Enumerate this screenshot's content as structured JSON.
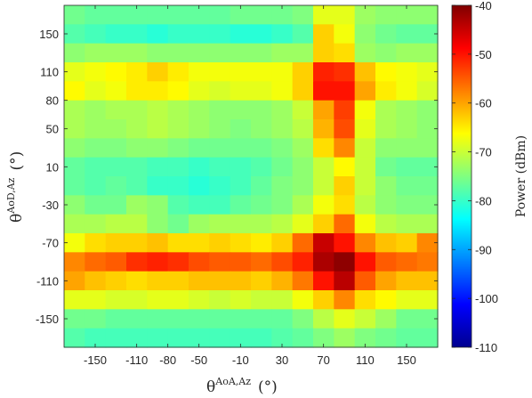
{
  "chart_data": {
    "type": "heatmap",
    "title": "",
    "x": [
      -170,
      -150,
      -130,
      -110,
      -90,
      -70,
      -50,
      -30,
      -10,
      10,
      30,
      50,
      70,
      90,
      110,
      130,
      150,
      170
    ],
    "y": [
      170,
      150,
      130,
      110,
      90,
      70,
      50,
      30,
      10,
      -10,
      -30,
      -50,
      -70,
      -90,
      -110,
      -130,
      -150,
      -170
    ],
    "xticks": [
      "-150",
      "-110",
      "-80",
      "-50",
      "-10",
      "30",
      "70",
      "110",
      "150"
    ],
    "yticks": [
      "150",
      "110",
      "80",
      "50",
      "10",
      "-30",
      "-70",
      "-110",
      "-150"
    ],
    "xlabel": {
      "base": "θ",
      "sup": "AoA,Az",
      "unit": "(°)"
    },
    "ylabel": {
      "base": "θ",
      "sup": "AoD,Az",
      "unit": "(°)"
    },
    "colorbar": {
      "label": "Power (dBm)",
      "min": -110,
      "max": -40,
      "ticks": [
        "-40",
        "-50",
        "-60",
        "-70",
        "-80",
        "-90",
        "-100",
        "-110"
      ],
      "colormap": "jet"
    },
    "values": [
      [
        -76,
        -77,
        -77,
        -77,
        -77,
        -77,
        -77,
        -77,
        -76,
        -76,
        -76,
        -75,
        -68,
        -68,
        -73,
        -74,
        -74,
        -74
      ],
      [
        -78,
        -79,
        -80,
        -80,
        -81,
        -80,
        -80,
        -80,
        -81,
        -81,
        -80,
        -78,
        -63,
        -67,
        -74,
        -76,
        -77,
        -77
      ],
      [
        -74,
        -73,
        -73,
        -73,
        -74,
        -74,
        -74,
        -74,
        -74,
        -74,
        -73,
        -73,
        -63,
        -64,
        -73,
        -74,
        -73,
        -73
      ],
      [
        -68,
        -67,
        -66,
        -65,
        -63,
        -65,
        -67,
        -67,
        -67,
        -67,
        -67,
        -63,
        -51,
        -52,
        -62,
        -66,
        -67,
        -68
      ],
      [
        -66,
        -68,
        -67,
        -65,
        -65,
        -66,
        -68,
        -69,
        -68,
        -68,
        -67,
        -63,
        -50,
        -50,
        -60,
        -65,
        -67,
        -69
      ],
      [
        -72,
        -73,
        -72,
        -72,
        -71,
        -72,
        -73,
        -74,
        -74,
        -74,
        -73,
        -70,
        -60,
        -53,
        -67,
        -72,
        -73,
        -74
      ],
      [
        -72,
        -73,
        -73,
        -72,
        -71,
        -72,
        -73,
        -74,
        -75,
        -74,
        -73,
        -71,
        -61,
        -54,
        -68,
        -72,
        -73,
        -74
      ],
      [
        -74,
        -75,
        -75,
        -74,
        -74,
        -75,
        -76,
        -76,
        -76,
        -76,
        -75,
        -73,
        -64,
        -58,
        -70,
        -74,
        -74,
        -74
      ],
      [
        -77,
        -78,
        -78,
        -78,
        -79,
        -79,
        -80,
        -79,
        -79,
        -78,
        -76,
        -74,
        -70,
        -66,
        -70,
        -76,
        -77,
        -77
      ],
      [
        -77,
        -78,
        -77,
        -78,
        -80,
        -80,
        -81,
        -80,
        -79,
        -77,
        -75,
        -74,
        -70,
        -63,
        -70,
        -74,
        -76,
        -76
      ],
      [
        -74,
        -76,
        -76,
        -73,
        -74,
        -78,
        -79,
        -79,
        -77,
        -76,
        -75,
        -72,
        -67,
        -64,
        -71,
        -74,
        -75,
        -75
      ],
      [
        -72,
        -72,
        -71,
        -71,
        -74,
        -76,
        -73,
        -72,
        -72,
        -72,
        -71,
        -68,
        -63,
        -56,
        -67,
        -71,
        -72,
        -72
      ],
      [
        -67,
        -64,
        -63,
        -63,
        -62,
        -64,
        -64,
        -63,
        -64,
        -65,
        -63,
        -56,
        -45,
        -50,
        -58,
        -62,
        -63,
        -58
      ],
      [
        -58,
        -56,
        -55,
        -52,
        -51,
        -52,
        -54,
        -55,
        -55,
        -56,
        -54,
        -51,
        -43,
        -41,
        -50,
        -55,
        -56,
        -57
      ],
      [
        -60,
        -62,
        -63,
        -64,
        -63,
        -63,
        -62,
        -62,
        -62,
        -63,
        -61,
        -57,
        -50,
        -44,
        -55,
        -60,
        -62,
        -62
      ],
      [
        -68,
        -68,
        -69,
        -69,
        -68,
        -68,
        -69,
        -70,
        -69,
        -70,
        -70,
        -67,
        -63,
        -58,
        -64,
        -66,
        -68,
        -68
      ],
      [
        -76,
        -76,
        -77,
        -77,
        -77,
        -77,
        -77,
        -77,
        -77,
        -77,
        -77,
        -75,
        -71,
        -68,
        -70,
        -73,
        -76,
        -76
      ],
      [
        -78,
        -79,
        -79,
        -79,
        -79,
        -79,
        -79,
        -79,
        -79,
        -79,
        -78,
        -77,
        -75,
        -73,
        -75,
        -76,
        -77,
        -77
      ]
    ]
  }
}
